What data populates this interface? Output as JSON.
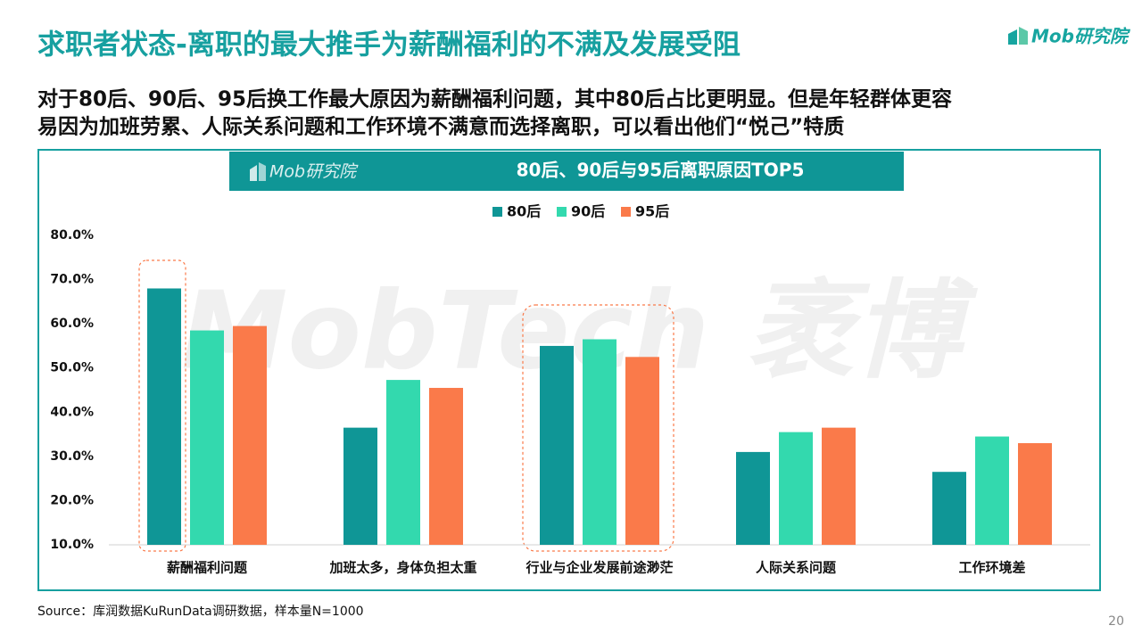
{
  "header": {
    "title": "求职者状态-离职的最大推手为薪酬福利的不满及发展受阻",
    "logo": "Mob研究院",
    "subtitle": [
      "对于80后、90后、95后换工作最大原因为薪酬福利问题，其中80后占比更明显。但是年轻群体更容",
      "易因为加班劳累、人际关系问题和工作环境不满意而选择离职，可以看出他们“悦己”特质"
    ]
  },
  "chart_data": {
    "type": "bar",
    "title": "80后、90后与95后离职原因TOP5",
    "logo": "Mob研究院",
    "watermark": "MobTech 袤博",
    "categories": [
      "薪酬福利问题",
      "加班太多，身体负担太重",
      "行业与企业发展前途渺茫",
      "人际关系问题",
      "工作环境差"
    ],
    "series": [
      {
        "name": "80后",
        "color": "#0f9696",
        "values": [
          68,
          36.5,
          55,
          31,
          26.5
        ]
      },
      {
        "name": "90后",
        "color": "#33d9ae",
        "values": [
          58.5,
          47.3,
          56.5,
          35.5,
          34.5
        ]
      },
      {
        "name": "95后",
        "color": "#fa7a4a",
        "values": [
          59.5,
          45.5,
          52.5,
          36.5,
          33
        ]
      }
    ],
    "ylim": [
      10,
      80
    ],
    "yticks": [
      {
        "value": 10,
        "label": "10.0%"
      },
      {
        "value": 20,
        "label": "20.0%"
      },
      {
        "value": 30,
        "label": "30.0%"
      },
      {
        "value": 40,
        "label": "40.0%"
      },
      {
        "value": 50,
        "label": "50.0%"
      },
      {
        "value": 60,
        "label": "60.0%"
      },
      {
        "value": 70,
        "label": "70.0%"
      },
      {
        "value": 80,
        "label": "80.0%"
      }
    ],
    "grid": false,
    "legend": "top"
  },
  "footer": {
    "source": "Source：库润数据KuRunData调研数据，样本量N=1000",
    "page_number": "20"
  }
}
